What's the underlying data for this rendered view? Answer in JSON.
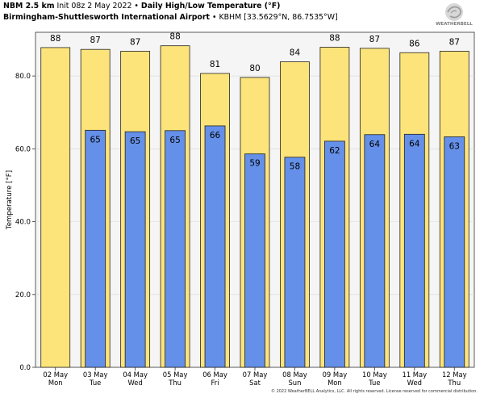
{
  "header": {
    "model": "NBM 2.5 km",
    "init": "Init 08z 2 May 2022",
    "sep1": "•",
    "product": "Daily High/Low Temperature (°F)",
    "station_name": "Birmingham-Shuttlesworth International Airport",
    "sep2": "•",
    "station_info": "KBHM [33.5629°N, 86.7535°W]"
  },
  "logo": {
    "text": "WEATHERBELL",
    "icon": "weatherbell-swirl-icon"
  },
  "copyright": "© 2022 WeatherBELL Analytics, LLC. All rights reserved. License reserved for commercial distribution.",
  "colors": {
    "high": "#fde47a",
    "low": "#6590e9",
    "plot_bg": "#f5f5f5",
    "grid": "#dddddd",
    "bar_edge": "#222222"
  },
  "chart_data": {
    "type": "bar",
    "categories": [
      {
        "date": "02 May",
        "day": "Mon"
      },
      {
        "date": "03 May",
        "day": "Tue"
      },
      {
        "date": "04 May",
        "day": "Wed"
      },
      {
        "date": "05 May",
        "day": "Thu"
      },
      {
        "date": "06 May",
        "day": "Fri"
      },
      {
        "date": "07 May",
        "day": "Sat"
      },
      {
        "date": "08 May",
        "day": "Sun"
      },
      {
        "date": "09 May",
        "day": "Mon"
      },
      {
        "date": "10 May",
        "day": "Tue"
      },
      {
        "date": "11 May",
        "day": "Wed"
      },
      {
        "date": "12 May",
        "day": "Thu"
      }
    ],
    "series": [
      {
        "values": [
          88,
          87,
          87,
          88,
          81,
          80,
          84,
          88,
          87,
          86,
          87
        ],
        "values_exact": [
          87.8,
          87.3,
          86.8,
          88.3,
          80.7,
          79.6,
          83.9,
          87.9,
          87.6,
          86.4,
          86.8
        ]
      },
      {
        "values": [
          null,
          65,
          65,
          65,
          66,
          59,
          58,
          62,
          64,
          64,
          63
        ],
        "values_exact": [
          null,
          65.1,
          64.7,
          65.0,
          66.3,
          58.6,
          57.7,
          62.1,
          63.9,
          64.0,
          63.3
        ]
      }
    ],
    "ylabel": "Temperature [°F]",
    "ylim": [
      0,
      92
    ],
    "yticks": [
      0,
      20,
      40,
      60,
      80
    ],
    "ytick_labels": [
      "0.0",
      "20.0",
      "40.0",
      "60.0",
      "80.0"
    ],
    "grid": true
  }
}
